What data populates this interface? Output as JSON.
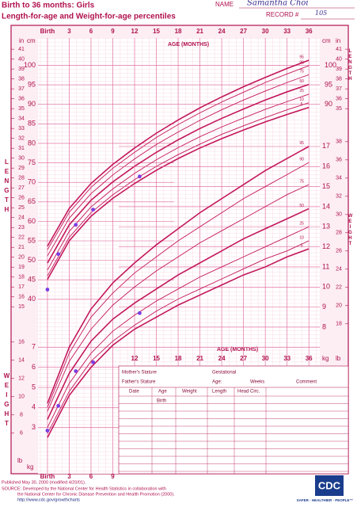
{
  "header": {
    "title": "Birth to 36 months: Girls",
    "subtitle": "Length-for-age and Weight-for-age percentiles",
    "name_label": "NAME",
    "name": "Samantha Choi",
    "record_label": "RECORD #",
    "record": "105"
  },
  "chart_data": [
    {
      "type": "line",
      "title": "Length-for-age",
      "xlabel": "AGE (MONTHS)",
      "ylabel": "LENGTH",
      "yunit": "cm",
      "y2unit": "in",
      "color": "#c2185b",
      "x": [
        0,
        3,
        6,
        9,
        12,
        15,
        18,
        21,
        24,
        27,
        30,
        33,
        36
      ],
      "xlim": [
        -1.3,
        36.2
      ],
      "xticks": [
        {
          "value": 0,
          "label": "Birth"
        },
        3,
        6,
        9,
        12,
        15,
        18,
        21,
        24,
        27,
        30,
        33,
        36
      ],
      "ylim": [
        35.5,
        107
      ],
      "yticks": [
        40,
        45,
        50,
        55,
        60,
        65,
        70,
        75,
        80,
        85,
        90,
        95,
        100
      ],
      "y2lim": [
        13.98,
        42.13
      ],
      "y2ticks": [
        15,
        16,
        17,
        18,
        19,
        20,
        21,
        22,
        23,
        24,
        25,
        26,
        27,
        28,
        29,
        30,
        31,
        32,
        33,
        34,
        35,
        36,
        37,
        38,
        39,
        40,
        41
      ],
      "series": [
        {
          "name": "95",
          "values": [
            53.6,
            63.3,
            69.7,
            74.6,
            78.8,
            82.6,
            86.0,
            89.1,
            91.9,
            94.5,
            96.9,
            99.2,
            101.3
          ]
        },
        {
          "name": "90",
          "values": [
            52.7,
            62.3,
            68.7,
            73.6,
            77.7,
            81.5,
            84.8,
            87.8,
            90.6,
            93.1,
            95.6,
            97.8,
            99.9
          ]
        },
        {
          "name": "75",
          "values": [
            51.1,
            60.8,
            67.1,
            71.9,
            76.0,
            79.7,
            82.9,
            85.9,
            88.6,
            91.1,
            93.4,
            95.6,
            97.6
          ]
        },
        {
          "name": "50",
          "values": [
            49.3,
            59.1,
            65.4,
            70.1,
            74.1,
            77.7,
            80.9,
            83.8,
            86.4,
            88.8,
            91.1,
            93.2,
            95.1
          ]
        },
        {
          "name": "25",
          "values": [
            47.5,
            57.4,
            63.7,
            68.3,
            72.3,
            75.8,
            78.9,
            81.7,
            84.2,
            86.5,
            88.7,
            90.7,
            92.6
          ]
        },
        {
          "name": "10",
          "values": [
            46.0,
            55.9,
            62.2,
            66.8,
            70.7,
            74.1,
            77.1,
            79.8,
            82.3,
            84.5,
            86.6,
            88.6,
            90.4
          ]
        },
        {
          "name": "5",
          "values": [
            45.1,
            55.0,
            61.3,
            65.9,
            69.7,
            73.1,
            76.1,
            78.8,
            81.2,
            83.4,
            85.5,
            87.4,
            89.2
          ]
        }
      ],
      "measurements": {
        "color": "#7b3fe4",
        "x": [
          0,
          1.5,
          3.9,
          6.3,
          12.7
        ],
        "values": [
          42.5,
          51.6,
          59.1,
          63.0,
          71.5
        ]
      }
    },
    {
      "type": "line",
      "title": "Weight-for-age",
      "xlabel": "AGE (MONTHS)",
      "ylabel": "WEIGHT",
      "yunit": "kg",
      "y2unit": "lb",
      "color": "#c2185b",
      "x": [
        0,
        3,
        6,
        9,
        12,
        15,
        18,
        21,
        24,
        27,
        30,
        33,
        36
      ],
      "xlim": [
        -1.3,
        36.2
      ],
      "ylim": [
        0.7,
        22.4
      ],
      "yticks": [
        3,
        4,
        5,
        6,
        7,
        8,
        9,
        10,
        11,
        12,
        13,
        14,
        15,
        16,
        17
      ],
      "y2lim": [
        1.54,
        49.38
      ],
      "y2ticks": [
        6,
        8,
        10,
        12,
        14,
        16,
        18,
        20,
        22,
        24,
        26,
        28,
        30,
        32,
        34,
        36,
        38
      ],
      "series": [
        {
          "name": "95",
          "values": [
            4.2,
            7.0,
            8.9,
            10.2,
            11.2,
            12.1,
            12.9,
            13.7,
            14.4,
            15.1,
            15.8,
            16.4,
            17.0
          ]
        },
        {
          "name": "90",
          "values": [
            4.0,
            6.7,
            8.5,
            9.7,
            10.7,
            11.5,
            12.3,
            13.0,
            13.7,
            14.4,
            15.0,
            15.6,
            16.2
          ]
        },
        {
          "name": "75",
          "values": [
            3.8,
            6.3,
            7.9,
            9.1,
            10.0,
            10.8,
            11.5,
            12.2,
            12.8,
            13.4,
            14.0,
            14.6,
            15.1
          ]
        },
        {
          "name": "50",
          "values": [
            3.4,
            5.7,
            7.3,
            8.4,
            9.2,
            9.9,
            10.6,
            11.2,
            11.8,
            12.4,
            12.9,
            13.4,
            13.9
          ]
        },
        {
          "name": "25",
          "values": [
            3.0,
            5.2,
            6.7,
            7.8,
            8.6,
            9.3,
            9.9,
            10.5,
            11.0,
            11.5,
            12.0,
            12.5,
            13.0
          ]
        },
        {
          "name": "10",
          "values": [
            2.7,
            4.8,
            6.3,
            7.3,
            8.1,
            8.8,
            9.4,
            9.9,
            10.4,
            10.9,
            11.4,
            11.8,
            12.3
          ]
        },
        {
          "name": "5",
          "values": [
            2.5,
            4.6,
            6.0,
            7.1,
            7.9,
            8.5,
            9.1,
            9.6,
            10.1,
            10.6,
            11.0,
            11.5,
            11.9
          ]
        }
      ],
      "measurements": {
        "color": "#7b3fe4",
        "x": [
          0,
          1.5,
          3.9,
          6.3,
          12.7
        ],
        "values": [
          2.85,
          4.08,
          5.81,
          6.25,
          8.7
        ]
      }
    }
  ],
  "form": {
    "mother": "Mother's Stature",
    "father": "Father's Stature",
    "gestational": "Gestational",
    "age": "Age:",
    "weeks": "Weeks",
    "comment": "Comment",
    "col_date": "Date",
    "col_age": "Age",
    "col_weight": "Weight",
    "col_length": "Length",
    "col_head": "Head Circ.",
    "birth": "Birth"
  },
  "footer": {
    "published": "Published May 30, 2000 (modified 4/20/01).",
    "source": "SOURCE: Developed by the National Center for Health Statistics in collaboration with",
    "source2": "the National Center for Chronic Disease Prevention and Health Promotion (2000).",
    "url": "http://www.cdc.gov/growthcharts",
    "logo": "CDC",
    "slogan": "SAFER · HEALTHIER · PEOPLE™"
  }
}
